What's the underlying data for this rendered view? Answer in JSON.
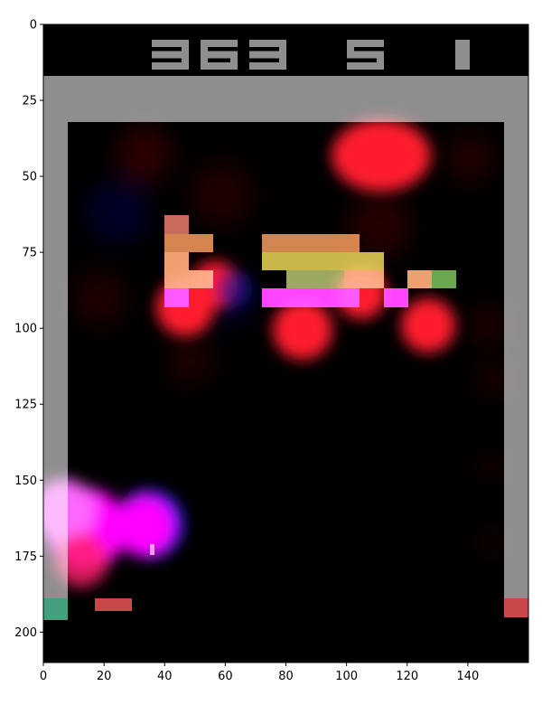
{
  "game": {
    "hud": {
      "score": "363",
      "lives": "5",
      "level": "1"
    },
    "colors": {
      "background": "#000000",
      "wall": "#8e8e8e",
      "hud_digits": "#8e8e8e",
      "paddle": "#c84848",
      "left_marker": "#42a07e",
      "right_marker": "#c84848",
      "ball": "#ff66ff"
    },
    "bricks": [
      {
        "row": 0,
        "color": "#c86a5a"
      },
      {
        "row": 1,
        "color": "#d4844e"
      },
      {
        "row": 2,
        "color": "#c8b84a"
      },
      {
        "row": 3,
        "color": "#f0a070"
      },
      {
        "row": 4,
        "color": "#6aa84f"
      },
      {
        "row": 5,
        "color": "#ff44ff"
      }
    ],
    "paddle": {
      "x": 17,
      "y": 189,
      "w": 12,
      "h": 4
    },
    "ball": {
      "x": 35,
      "y": 171
    },
    "saliency_overlay": true
  },
  "axes": {
    "x_ticks": [
      "0",
      "20",
      "40",
      "60",
      "80",
      "100",
      "120",
      "140"
    ],
    "y_ticks": [
      "0",
      "25",
      "50",
      "75",
      "100",
      "125",
      "150",
      "175",
      "200"
    ],
    "xlim": [
      0,
      160
    ],
    "ylim": [
      210,
      0
    ]
  }
}
